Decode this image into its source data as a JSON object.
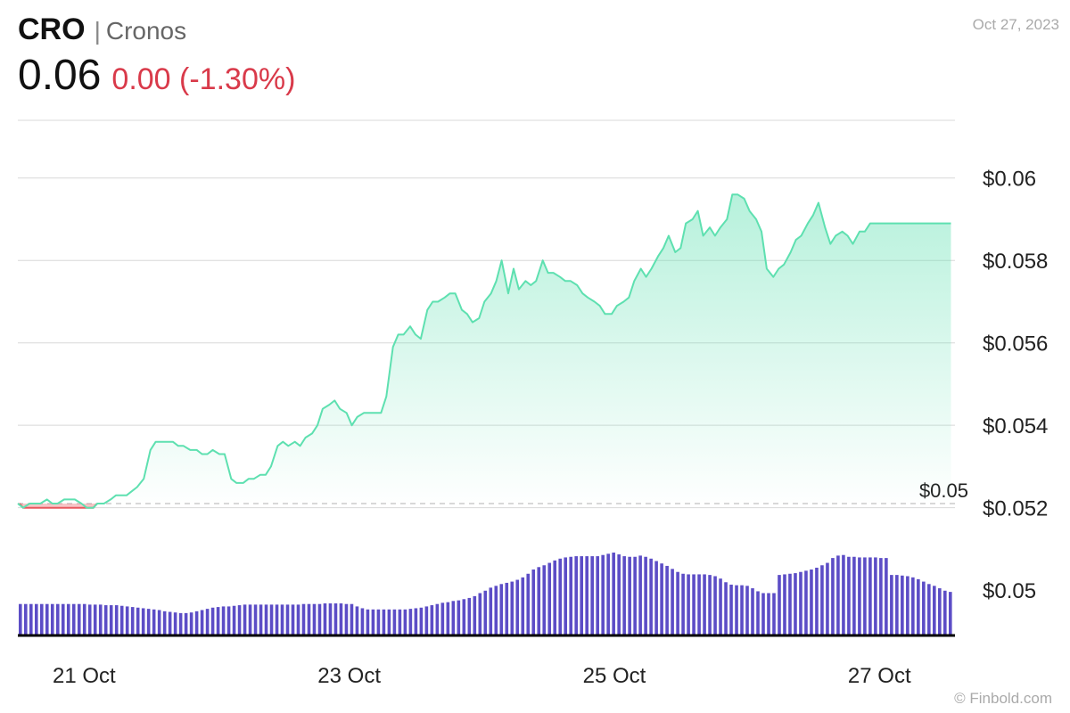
{
  "header": {
    "symbol": "CRO",
    "separator": "|",
    "name": "Cronos",
    "price": "0.06",
    "change": "0.00 (-1.30%)",
    "date": "Oct 27, 2023"
  },
  "credit": "© Finbold.com",
  "colors": {
    "up_line": "#5ee0b0",
    "down_line": "#e8595f",
    "volume": "#5c4dc6",
    "grid": "#d8d8d8",
    "baseline": "#000000",
    "change_text": "#d93a4a"
  },
  "chart_data": {
    "type": "area",
    "series_name": "CRO price",
    "x_tick_labels": [
      "21 Oct",
      "23 Oct",
      "25 Oct",
      "27 Oct"
    ],
    "x_ticks": [
      0.5,
      2.5,
      4.5,
      6.5
    ],
    "x_range": [
      0,
      7.07
    ],
    "y_ticks": [
      0.05,
      0.052,
      0.054,
      0.056,
      0.058,
      0.06
    ],
    "y_tick_labels": [
      "$0.05",
      "$0.052",
      "$0.054",
      "$0.056",
      "$0.058",
      "$0.06"
    ],
    "ylim": [
      0.0489,
      0.0614
    ],
    "reference_value": 0.0521,
    "reference_label": "$0.05",
    "price_x": [
      0,
      0.04,
      0.09,
      0.13,
      0.17,
      0.22,
      0.26,
      0.3,
      0.35,
      0.39,
      0.43,
      0.48,
      0.52,
      0.57,
      0.6,
      0.65,
      0.7,
      0.74,
      0.78,
      0.82,
      0.86,
      0.9,
      0.95,
      1.0,
      1.04,
      1.08,
      1.12,
      1.17,
      1.21,
      1.25,
      1.3,
      1.35,
      1.39,
      1.43,
      1.47,
      1.52,
      1.56,
      1.61,
      1.65,
      1.7,
      1.74,
      1.78,
      1.83,
      1.87,
      1.91,
      1.96,
      2.0,
      2.04,
      2.09,
      2.13,
      2.17,
      2.22,
      2.26,
      2.3,
      2.35,
      2.39,
      2.43,
      2.48,
      2.52,
      2.56,
      2.61,
      2.65,
      2.7,
      2.74,
      2.78,
      2.83,
      2.87,
      2.91,
      2.96,
      3.0,
      3.04,
      3.09,
      3.13,
      3.17,
      3.22,
      3.26,
      3.3,
      3.35,
      3.39,
      3.43,
      3.48,
      3.52,
      3.57,
      3.61,
      3.65,
      3.7,
      3.74,
      3.78,
      3.83,
      3.87,
      3.91,
      3.96,
      4.0,
      4.04,
      4.09,
      4.13,
      4.17,
      4.22,
      4.26,
      4.3,
      4.35,
      4.39,
      4.43,
      4.48,
      4.52,
      4.57,
      4.61,
      4.65,
      4.7,
      4.74,
      4.78,
      4.83,
      4.87,
      4.91,
      4.96,
      5.0,
      5.04,
      5.09,
      5.13,
      5.17,
      5.22,
      5.26,
      5.3,
      5.35,
      5.39,
      5.43,
      5.48,
      5.52,
      5.57,
      5.61,
      5.65,
      5.7,
      5.74,
      5.78,
      5.83,
      5.87,
      5.91,
      5.96,
      6.0,
      6.04,
      6.09,
      6.13,
      6.17,
      6.22,
      6.26,
      6.3,
      6.35,
      6.39,
      6.43,
      6.48,
      6.52,
      6.57,
      6.61,
      6.65,
      6.7,
      6.74,
      6.78,
      6.83,
      6.87,
      6.91,
      6.96,
      7.0,
      7.04
    ],
    "price_y": [
      0.0521,
      0.052,
      0.0521,
      0.0521,
      0.0521,
      0.0522,
      0.0521,
      0.0521,
      0.0522,
      0.0522,
      0.0522,
      0.0521,
      0.052,
      0.052,
      0.0521,
      0.0521,
      0.0522,
      0.0523,
      0.0523,
      0.0523,
      0.0524,
      0.0525,
      0.0527,
      0.0534,
      0.0536,
      0.0536,
      0.0536,
      0.0536,
      0.0535,
      0.0535,
      0.0534,
      0.0534,
      0.0533,
      0.0533,
      0.0534,
      0.0533,
      0.0533,
      0.0527,
      0.0526,
      0.0526,
      0.0527,
      0.0527,
      0.0528,
      0.0528,
      0.053,
      0.0535,
      0.0536,
      0.0535,
      0.0536,
      0.0535,
      0.0537,
      0.0538,
      0.054,
      0.0544,
      0.0545,
      0.0546,
      0.0544,
      0.0543,
      0.054,
      0.0542,
      0.0543,
      0.0543,
      0.0543,
      0.0543,
      0.0547,
      0.0559,
      0.0562,
      0.0562,
      0.0564,
      0.0562,
      0.0561,
      0.0568,
      0.057,
      0.057,
      0.0571,
      0.0572,
      0.0572,
      0.0568,
      0.0567,
      0.0565,
      0.0566,
      0.057,
      0.0572,
      0.0575,
      0.058,
      0.0572,
      0.0578,
      0.0573,
      0.0575,
      0.0574,
      0.0575,
      0.058,
      0.0577,
      0.0577,
      0.0576,
      0.0575,
      0.0575,
      0.0574,
      0.0572,
      0.0571,
      0.057,
      0.0569,
      0.0567,
      0.0567,
      0.0569,
      0.057,
      0.0571,
      0.0575,
      0.0578,
      0.0576,
      0.0578,
      0.0581,
      0.0583,
      0.0586,
      0.0582,
      0.0583,
      0.0589,
      0.059,
      0.0592,
      0.0586,
      0.0588,
      0.0586,
      0.0588,
      0.059,
      0.0596,
      0.0596,
      0.0595,
      0.0592,
      0.059,
      0.0587,
      0.0578,
      0.0576,
      0.0578,
      0.0579,
      0.0582,
      0.0585,
      0.0586,
      0.0589,
      0.0591,
      0.0594,
      0.0588,
      0.0584,
      0.0586,
      0.0587,
      0.0586,
      0.0584,
      0.0587,
      0.0587,
      0.0589,
      0.0589,
      0.0589,
      0.0589,
      0.0589,
      0.0589,
      0.0589,
      0.0589,
      0.0589,
      0.0589,
      0.0589,
      0.0589,
      0.0589,
      0.0589,
      0.0589,
      0.0589
    ],
    "volume_relative": [
      0.52,
      0.52,
      0.52,
      0.52,
      0.52,
      0.52,
      0.52,
      0.52,
      0.52,
      0.52,
      0.52,
      0.52,
      0.52,
      0.51,
      0.51,
      0.51,
      0.5,
      0.5,
      0.5,
      0.49,
      0.48,
      0.47,
      0.46,
      0.45,
      0.44,
      0.43,
      0.42,
      0.4,
      0.39,
      0.38,
      0.37,
      0.37,
      0.38,
      0.4,
      0.42,
      0.44,
      0.46,
      0.47,
      0.48,
      0.48,
      0.49,
      0.5,
      0.51,
      0.51,
      0.51,
      0.51,
      0.51,
      0.51,
      0.51,
      0.51,
      0.51,
      0.51,
      0.51,
      0.52,
      0.52,
      0.52,
      0.52,
      0.53,
      0.53,
      0.53,
      0.53,
      0.52,
      0.52,
      0.48,
      0.45,
      0.43,
      0.43,
      0.43,
      0.43,
      0.43,
      0.43,
      0.43,
      0.43,
      0.44,
      0.45,
      0.46,
      0.48,
      0.5,
      0.52,
      0.54,
      0.55,
      0.57,
      0.58,
      0.6,
      0.62,
      0.65,
      0.7,
      0.74,
      0.79,
      0.82,
      0.85,
      0.87,
      0.89,
      0.92,
      0.96,
      1.02,
      1.09,
      1.13,
      1.16,
      1.2,
      1.24,
      1.27,
      1.29,
      1.3,
      1.31,
      1.31,
      1.31,
      1.31,
      1.31,
      1.33,
      1.35,
      1.37,
      1.34,
      1.31,
      1.3,
      1.3,
      1.32,
      1.3,
      1.27,
      1.23,
      1.19,
      1.15,
      1.1,
      1.05,
      1.02,
      1.01,
      1.01,
      1.01,
      1.01,
      1.0,
      0.98,
      0.94,
      0.88,
      0.84,
      0.83,
      0.83,
      0.82,
      0.78,
      0.73,
      0.7,
      0.7,
      0.7,
      1.0,
      1.01,
      1.02,
      1.03,
      1.05,
      1.07,
      1.09,
      1.12,
      1.16,
      1.2,
      1.28,
      1.32,
      1.33,
      1.3,
      1.3,
      1.29,
      1.29,
      1.29,
      1.29,
      1.28,
      1.28,
      1.0,
      1.0,
      0.99,
      0.98,
      0.96,
      0.93,
      0.89,
      0.85,
      0.82,
      0.78,
      0.74,
      0.72
    ]
  }
}
